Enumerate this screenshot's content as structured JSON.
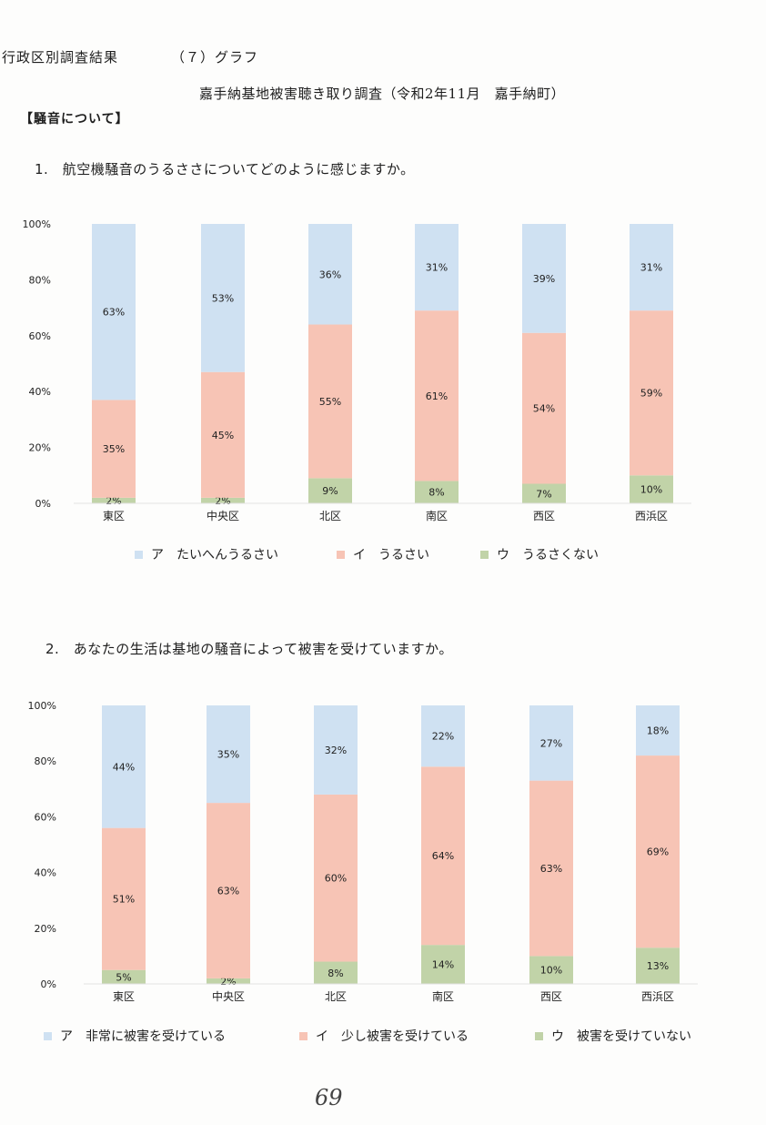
{
  "header": {
    "title": "行政区別調査結果",
    "graph_label": "（７）グラフ",
    "subtitle": "嘉手納基地被害聴き取り調査（令和2年11月　嘉手納町）",
    "section": "【騒音について】"
  },
  "page_number": "69",
  "colors": {
    "a": "#cfe1f2",
    "i": "#f7c4b5",
    "u": "#c1d3a8"
  },
  "chart_data": [
    {
      "type": "bar",
      "stacked": true,
      "title": "1.　航空機騒音のうるささについてどのように感じますか。",
      "categories": [
        "東区",
        "中央区",
        "北区",
        "南区",
        "西区",
        "西浜区"
      ],
      "ylim": [
        0,
        100
      ],
      "yticks": [
        "0%",
        "20%",
        "40%",
        "60%",
        "80%",
        "100%"
      ],
      "series": [
        {
          "name": "ア　たいへんうるさい",
          "values": [
            63,
            53,
            36,
            31,
            39,
            31
          ],
          "labels": [
            "63%",
            "53%",
            "36%",
            "31%",
            "39%",
            "31%"
          ]
        },
        {
          "name": "イ　うるさい",
          "values": [
            35,
            45,
            55,
            61,
            54,
            59
          ],
          "labels": [
            "35%",
            "45%",
            "55%",
            "61%",
            "54%",
            "59%"
          ]
        },
        {
          "name": "ウ　うるさくない",
          "values": [
            2,
            2,
            9,
            8,
            7,
            10
          ],
          "labels": [
            "2%",
            "2%",
            "9%",
            "8%",
            "7%",
            "10%"
          ]
        }
      ],
      "legend": "bottom"
    },
    {
      "type": "bar",
      "stacked": true,
      "title": "2.　あなたの生活は基地の騒音によって被害を受けていますか。",
      "categories": [
        "東区",
        "中央区",
        "北区",
        "南区",
        "西区",
        "西浜区"
      ],
      "ylim": [
        0,
        100
      ],
      "yticks": [
        "0%",
        "20%",
        "40%",
        "60%",
        "80%",
        "100%"
      ],
      "series": [
        {
          "name": "ア　非常に被害を受けている",
          "values": [
            44,
            35,
            32,
            22,
            27,
            18
          ],
          "labels": [
            "44%",
            "35%",
            "32%",
            "22%",
            "27%",
            "18%"
          ]
        },
        {
          "name": "イ　少し被害を受けている",
          "values": [
            51,
            63,
            60,
            64,
            63,
            69
          ],
          "labels": [
            "51%",
            "63%",
            "60%",
            "64%",
            "63%",
            "69%"
          ]
        },
        {
          "name": "ウ　被害を受けていない",
          "values": [
            5,
            2,
            8,
            14,
            10,
            13
          ],
          "labels": [
            "5%",
            "2%",
            "8%",
            "14%",
            "10%",
            "13%"
          ]
        }
      ],
      "legend": "bottom"
    }
  ]
}
